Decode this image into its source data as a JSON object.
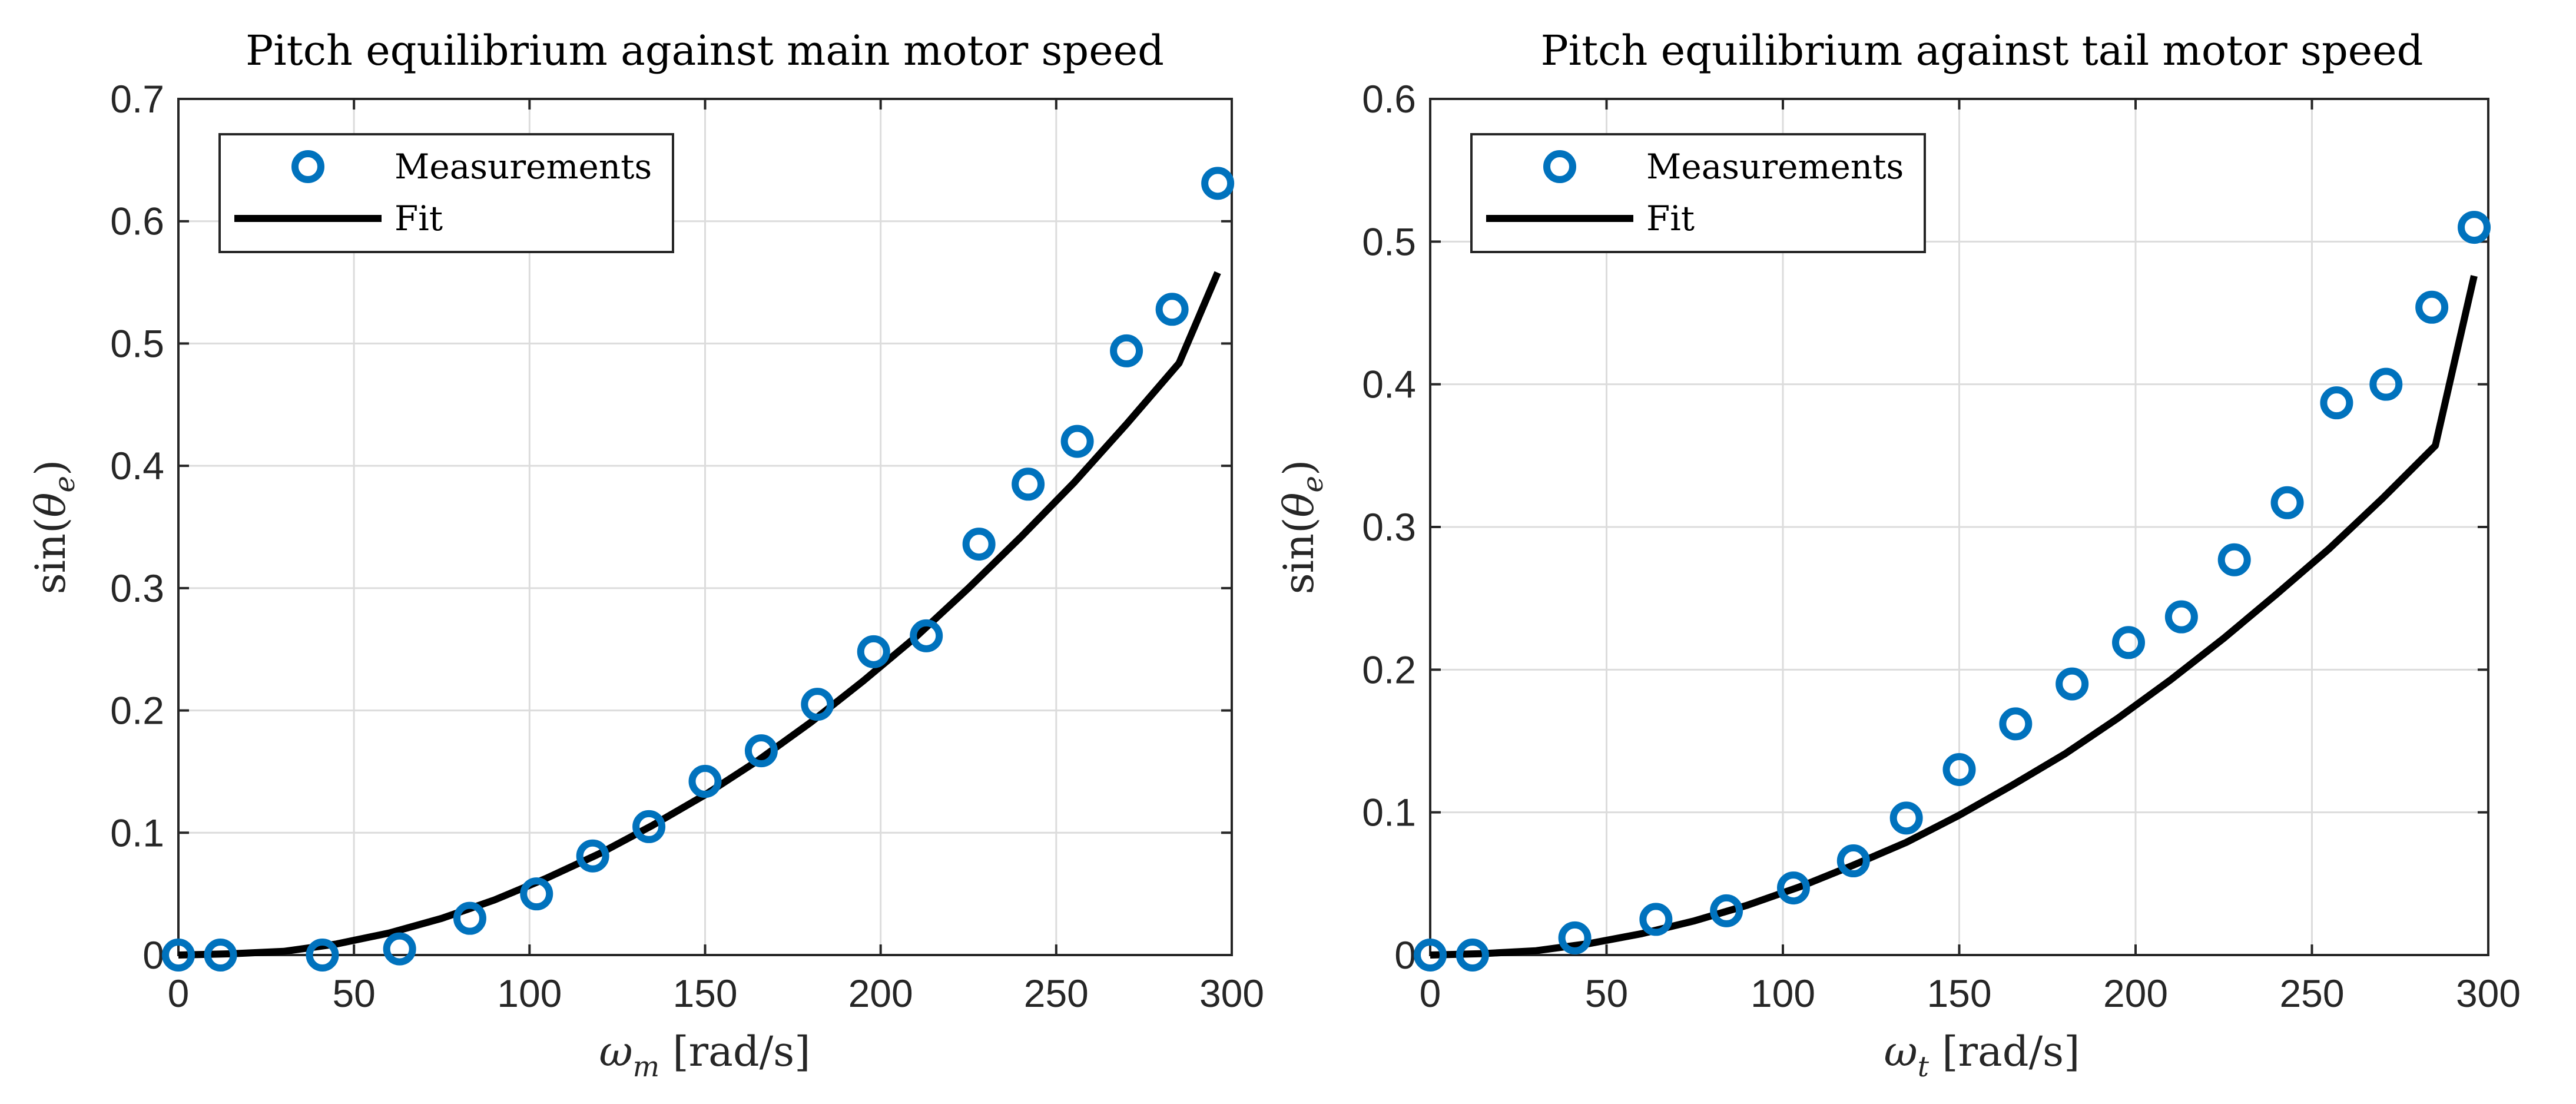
{
  "colors": {
    "measurements": "#0072BD",
    "fit": "#000000",
    "grid": "#dcdcdc",
    "axis": "#262626"
  },
  "chart_data": [
    {
      "type": "scatter",
      "title": "Pitch equilibrium against main motor speed",
      "xlabel": "ω_m [rad/s]",
      "ylabel": "sin(θ_e)",
      "xlim": [
        0,
        300
      ],
      "ylim": [
        0,
        0.7
      ],
      "xticks": [
        0,
        50,
        100,
        150,
        200,
        250,
        300
      ],
      "yticks": [
        0,
        0.1,
        0.2,
        0.3,
        0.4,
        0.5,
        0.6,
        0.7
      ],
      "grid": true,
      "legend": "top-left",
      "series": [
        {
          "name": "Measurements",
          "kind": "markers",
          "x": [
            0,
            12,
            41,
            63,
            83,
            102,
            118,
            134,
            150,
            166,
            182,
            198,
            213,
            228,
            242,
            256,
            270,
            283,
            296
          ],
          "y": [
            0,
            0,
            0,
            0.005,
            0.03,
            0.05,
            0.081,
            0.105,
            0.142,
            0.167,
            0.205,
            0.248,
            0.261,
            0.336,
            0.385,
            0.42,
            0.494,
            0.528,
            0.631
          ]
        },
        {
          "name": "Fit",
          "kind": "line",
          "x": [
            0,
            15,
            30,
            45,
            60,
            75,
            90,
            105,
            120,
            135,
            150,
            165,
            180,
            195,
            210,
            225,
            240,
            255,
            270,
            285,
            296
          ],
          "y": [
            0,
            0.001,
            0.003,
            0.009,
            0.018,
            0.03,
            0.045,
            0.063,
            0.083,
            0.106,
            0.131,
            0.159,
            0.19,
            0.224,
            0.26,
            0.3,
            0.342,
            0.386,
            0.434,
            0.484,
            0.558
          ]
        }
      ]
    },
    {
      "type": "scatter",
      "title": "Pitch equilibrium against tail motor speed",
      "xlabel": "ω_t [rad/s]",
      "ylabel": "sin(θ_e)",
      "xlim": [
        0,
        300
      ],
      "ylim": [
        0,
        0.6
      ],
      "xticks": [
        0,
        50,
        100,
        150,
        200,
        250,
        300
      ],
      "yticks": [
        0,
        0.1,
        0.2,
        0.3,
        0.4,
        0.5,
        0.6
      ],
      "grid": true,
      "legend": "top-left",
      "series": [
        {
          "name": "Measurements",
          "kind": "markers",
          "x": [
            0,
            12,
            41,
            64,
            84,
            103,
            120,
            135,
            150,
            166,
            182,
            198,
            213,
            228,
            243,
            257,
            271,
            284,
            296
          ],
          "y": [
            0,
            0,
            0.012,
            0.025,
            0.031,
            0.047,
            0.066,
            0.096,
            0.13,
            0.162,
            0.19,
            0.219,
            0.237,
            0.277,
            0.317,
            0.387,
            0.4,
            0.454,
            0.51
          ]
        },
        {
          "name": "Fit",
          "kind": "line",
          "x": [
            0,
            15,
            30,
            45,
            60,
            75,
            90,
            105,
            120,
            135,
            150,
            165,
            180,
            195,
            210,
            225,
            240,
            255,
            270,
            285,
            296
          ],
          "y": [
            0,
            0.001,
            0.003,
            0.008,
            0.015,
            0.024,
            0.035,
            0.048,
            0.063,
            0.079,
            0.098,
            0.119,
            0.141,
            0.166,
            0.193,
            0.222,
            0.253,
            0.285,
            0.32,
            0.357,
            0.476
          ]
        }
      ]
    }
  ]
}
